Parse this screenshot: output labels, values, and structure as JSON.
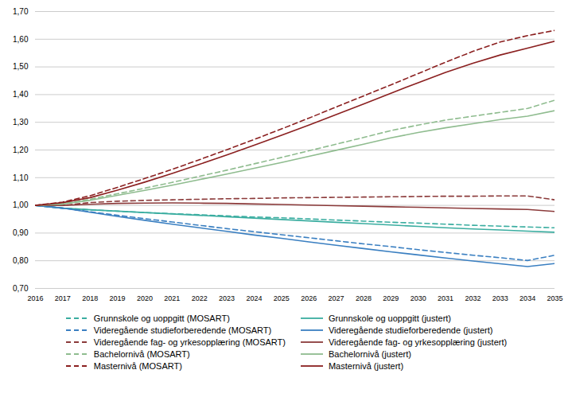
{
  "chart_data": {
    "type": "line",
    "x": [
      2016,
      2017,
      2018,
      2019,
      2020,
      2021,
      2022,
      2023,
      2024,
      2025,
      2026,
      2027,
      2028,
      2029,
      2030,
      2031,
      2032,
      2033,
      2034,
      2035
    ],
    "xlim": [
      2016,
      2035
    ],
    "xticks": [
      2016,
      2017,
      2018,
      2019,
      2020,
      2021,
      2022,
      2023,
      2024,
      2025,
      2026,
      2027,
      2028,
      2029,
      2030,
      2031,
      2032,
      2033,
      2034,
      2035
    ],
    "ylim": [
      0.7,
      1.7
    ],
    "yticks": [
      {
        "value": 0.7,
        "label": "0,70"
      },
      {
        "value": 0.8,
        "label": "0,80"
      },
      {
        "value": 0.9,
        "label": "0,90"
      },
      {
        "value": 1.0,
        "label": "1,00"
      },
      {
        "value": 1.1,
        "label": "1,10"
      },
      {
        "value": 1.2,
        "label": "1,20"
      },
      {
        "value": 1.3,
        "label": "1,30"
      },
      {
        "value": 1.4,
        "label": "1,40"
      },
      {
        "value": 1.5,
        "label": "1,50"
      },
      {
        "value": 1.6,
        "label": "1,60"
      },
      {
        "value": 1.7,
        "label": "1,70"
      }
    ],
    "grid": "y",
    "legend": "bottom",
    "series": [
      {
        "name": "Grunnskole og uoppgitt (MOSART)",
        "color": "#3aada0",
        "line_style": "dashed",
        "values": [
          1.0,
          0.99,
          0.984,
          0.979,
          0.974,
          0.97,
          0.966,
          0.962,
          0.958,
          0.955,
          0.951,
          0.947,
          0.943,
          0.939,
          0.936,
          0.932,
          0.928,
          0.925,
          0.922,
          0.919
        ]
      },
      {
        "name": "Grunnskole og uoppgitt (justert)",
        "color": "#3aada0",
        "line_style": "solid",
        "values": [
          1.0,
          0.99,
          0.984,
          0.979,
          0.974,
          0.969,
          0.964,
          0.959,
          0.954,
          0.949,
          0.944,
          0.939,
          0.934,
          0.929,
          0.924,
          0.919,
          0.915,
          0.911,
          0.907,
          0.903
        ]
      },
      {
        "name": "Videregående studieforberedende (MOSART)",
        "color": "#3a7fc1",
        "line_style": "dashed",
        "values": [
          1.0,
          0.99,
          0.977,
          0.964,
          0.952,
          0.94,
          0.928,
          0.916,
          0.905,
          0.894,
          0.883,
          0.872,
          0.861,
          0.851,
          0.84,
          0.83,
          0.82,
          0.811,
          0.801,
          0.82
        ]
      },
      {
        "name": "Videregående studieforberedende (justert)",
        "color": "#3a7fc1",
        "line_style": "solid",
        "values": [
          1.0,
          0.99,
          0.975,
          0.96,
          0.946,
          0.932,
          0.919,
          0.906,
          0.893,
          0.881,
          0.868,
          0.856,
          0.844,
          0.832,
          0.821,
          0.81,
          0.799,
          0.789,
          0.779,
          0.79
        ]
      },
      {
        "name": "Videregående fag- og yrkesopplæring (MOSART)",
        "color": "#8b3a3a",
        "line_style": "dashed",
        "values": [
          1.0,
          1.0,
          1.01,
          1.015,
          1.018,
          1.02,
          1.022,
          1.024,
          1.025,
          1.027,
          1.028,
          1.029,
          1.03,
          1.031,
          1.032,
          1.033,
          1.033,
          1.034,
          1.034,
          1.02
        ]
      },
      {
        "name": "Videregående fag- og yrkesopplæring (justert)",
        "color": "#8b3a3a",
        "line_style": "solid",
        "values": [
          1.0,
          1.0,
          1.004,
          1.007,
          1.008,
          1.009,
          1.008,
          1.007,
          1.005,
          1.003,
          1.001,
          0.999,
          0.997,
          0.995,
          0.993,
          0.991,
          0.989,
          0.987,
          0.985,
          0.978
        ]
      },
      {
        "name": "Bachelornivå (MOSART)",
        "color": "#8fbc8f",
        "line_style": "dashed",
        "values": [
          1.0,
          1.005,
          1.022,
          1.042,
          1.062,
          1.083,
          1.105,
          1.127,
          1.15,
          1.173,
          1.197,
          1.221,
          1.245,
          1.27,
          1.29,
          1.308,
          1.322,
          1.336,
          1.35,
          1.38
        ]
      },
      {
        "name": "Bachelornivå (justert)",
        "color": "#8fbc8f",
        "line_style": "solid",
        "values": [
          1.0,
          1.005,
          1.018,
          1.036,
          1.054,
          1.073,
          1.093,
          1.113,
          1.134,
          1.155,
          1.177,
          1.199,
          1.221,
          1.244,
          1.263,
          1.28,
          1.295,
          1.31,
          1.322,
          1.342
        ]
      },
      {
        "name": "Masternivå (MOSART)",
        "color": "#8b2020",
        "line_style": "dashed",
        "values": [
          1.0,
          1.012,
          1.035,
          1.065,
          1.097,
          1.13,
          1.165,
          1.201,
          1.238,
          1.276,
          1.315,
          1.355,
          1.395,
          1.435,
          1.476,
          1.517,
          1.556,
          1.59,
          1.613,
          1.632
        ]
      },
      {
        "name": "Masternivå (justert)",
        "color": "#8b2020",
        "line_style": "solid",
        "values": [
          1.0,
          1.01,
          1.028,
          1.055,
          1.084,
          1.115,
          1.148,
          1.182,
          1.217,
          1.253,
          1.29,
          1.328,
          1.366,
          1.405,
          1.443,
          1.48,
          1.513,
          1.543,
          1.568,
          1.593
        ]
      }
    ]
  }
}
